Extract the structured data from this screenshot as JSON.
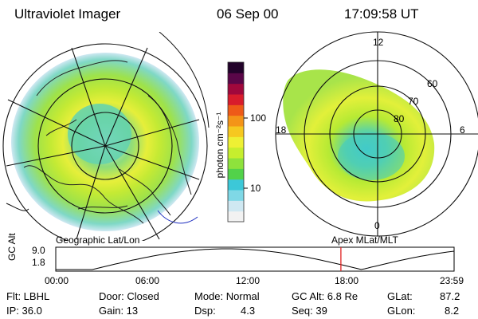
{
  "header": {
    "title": "Ultraviolet Imager",
    "date": "06 Sep 00",
    "time": "17:09:58 UT"
  },
  "colorbar": {
    "unit_label": "photon cm⁻²s⁻¹",
    "tick_100": "100",
    "tick_10": "10",
    "colors": [
      "#f2f2f2",
      "#cfe8f2",
      "#7fd8e6",
      "#3cc8d8",
      "#52d24a",
      "#8ee23c",
      "#c6ee2e",
      "#eef034",
      "#f6c820",
      "#f49418",
      "#ee5a18",
      "#d81c2c",
      "#a0083c",
      "#5a0648",
      "#22022a"
    ]
  },
  "left_panel": {
    "label": "Geographic Lat/Lon"
  },
  "right_panel": {
    "label": "Apex  MLat/MLT",
    "lat_labels": [
      "60",
      "70",
      "80"
    ],
    "mlt_labels": {
      "top": "12",
      "bottom": "0",
      "left": "18",
      "right": "6"
    }
  },
  "altitude_plot": {
    "axis_title": "GC Alt",
    "y_ticks": [
      "9.0",
      "1.8"
    ],
    "x_ticks": [
      "00:00",
      "06:00",
      "12:00",
      "18:00",
      "23:59"
    ],
    "current_hour": 17.166,
    "marker_color": "#e02020"
  },
  "info": {
    "row1": {
      "flt": "Flt: LBHL",
      "door": "Door: Closed",
      "mode": "Mode: Normal",
      "gc_alt": "GC Alt: 6.8 Re",
      "glat_label": "GLat:",
      "glat_value": "87.2"
    },
    "row2": {
      "ip": "IP: 36.0",
      "gain": "Gain: 13",
      "dsp_label": "Dsp:",
      "dsp_value": "4.3",
      "seq": "Seq: 39",
      "glon_label": "GLon:",
      "glon_value": "8.2"
    }
  }
}
